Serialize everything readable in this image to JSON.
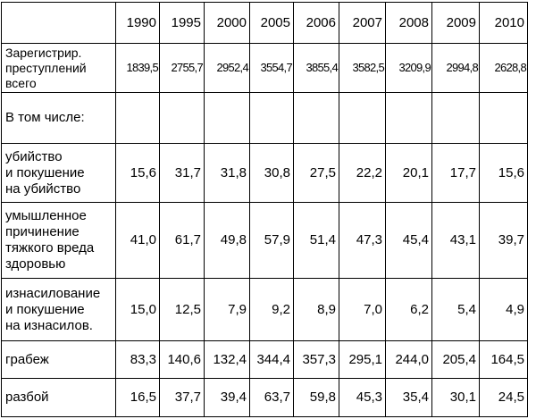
{
  "table": {
    "years": [
      "1990",
      "1995",
      "2000",
      "2005",
      "2006",
      "2007",
      "2008",
      "2009",
      "2010"
    ],
    "rows": [
      {
        "label": "Зарегистрир.\nпреступлений\nвсего",
        "values": [
          "1839,5",
          "2755,7",
          "2952,4",
          "3554,7",
          "3855,4",
          "3582,5",
          "3209,9",
          "2994,8",
          "2628,8"
        ]
      },
      {
        "label": "В том числе:"
      },
      {
        "label": "убийство\nи покушение\nна убийство",
        "values": [
          "15,6",
          "31,7",
          "31,8",
          "30,8",
          "27,5",
          "22,2",
          "20,1",
          "17,7",
          "15,6"
        ]
      },
      {
        "label": "умышленное\nпричинение\nтяжкого вреда\nздоровью",
        "values": [
          "41,0",
          "61,7",
          "49,8",
          "57,9",
          "51,4",
          "47,3",
          "45,4",
          "43,1",
          "39,7"
        ]
      },
      {
        "label": "изнасилование\nи покушение\nна изнасилов.",
        "values": [
          "15,0",
          "12,5",
          "7,9",
          "9,2",
          "8,9",
          "7,0",
          "6,2",
          "5,4",
          "4,9"
        ]
      },
      {
        "label": "грабеж",
        "values": [
          "83,3",
          "140,6",
          "132,4",
          "344,4",
          "357,3",
          "295,1",
          "244,0",
          "205,4",
          "164,5"
        ]
      },
      {
        "label": "разбой",
        "values": [
          "16,5",
          "37,7",
          "39,4",
          "63,7",
          "59,8",
          "45,3",
          "35,4",
          "30,1",
          "24,5"
        ]
      }
    ]
  }
}
